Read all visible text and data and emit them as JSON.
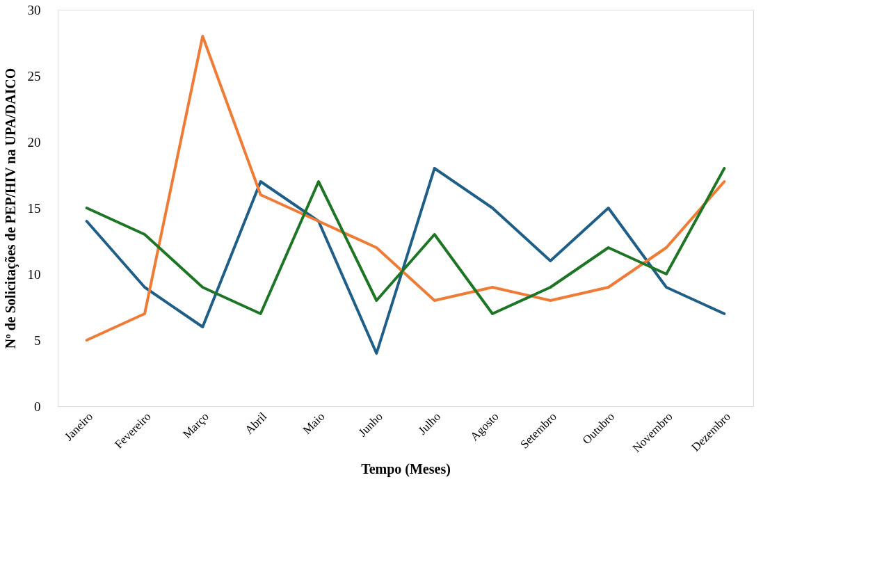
{
  "chart_data": {
    "type": "line",
    "xlabel": "Tempo (Meses)",
    "ylabel": "Nº de Solicitações de PEP/HIV na UPA/DAICO",
    "categories": [
      "Janeiro",
      "Fevereiro",
      "Março",
      "Abril",
      "Maio",
      "Junho",
      "Julho",
      "Agosto",
      "Setembro",
      "Outubro",
      "Novembro",
      "Dezembro"
    ],
    "series": [
      {
        "color": "#1f5e86",
        "values": [
          14,
          9,
          6,
          17,
          14,
          4,
          18,
          15,
          11,
          15,
          9,
          7
        ]
      },
      {
        "color": "#ee7b36",
        "values": [
          5,
          7,
          28,
          16,
          14,
          12,
          8,
          9,
          8,
          9,
          12,
          17
        ]
      },
      {
        "color": "#1e7526",
        "values": [
          15,
          13,
          9,
          7,
          17,
          8,
          13,
          7,
          9,
          12,
          10,
          18
        ]
      }
    ],
    "ylim": [
      0,
      30
    ],
    "yticks": [
      0,
      5,
      10,
      15,
      20,
      25,
      30
    ],
    "grid": false,
    "legend": false
  }
}
